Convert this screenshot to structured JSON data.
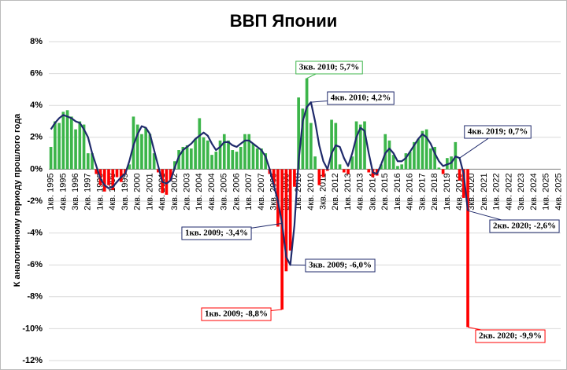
{
  "chart_data": {
    "type": "bar-line",
    "title": "ВВП Японии",
    "y_label": "К аналогичному периоду прошлого года",
    "categories": [
      "1кв. 1995",
      null,
      null,
      "4кв. 1995",
      null,
      null,
      "3кв. 1996",
      null,
      null,
      "2кв. 1997",
      null,
      null,
      "1кв. 1998",
      null,
      null,
      "4кв. 1998",
      null,
      null,
      "3кв. 1999",
      null,
      null,
      "2кв. 2000",
      null,
      null,
      "1кв. 2001",
      null,
      null,
      "4кв. 2001",
      null,
      null,
      "3кв. 2002",
      null,
      null,
      "2кв. 2003",
      null,
      null,
      "1кв. 2004",
      null,
      null,
      "4кв. 2004",
      null,
      null,
      "3кв. 2005",
      null,
      null,
      "2кв. 2006",
      null,
      null,
      "1кв. 2007",
      null,
      null,
      "4кв. 2007",
      null,
      null,
      "3кв. 2008",
      null,
      null,
      "2кв. 2009",
      null,
      null,
      "1кв. 2010",
      null,
      null,
      "4кв. 2010",
      null,
      null,
      "3кв. 2011",
      null,
      null,
      "2кв. 2012",
      null,
      null,
      "1кв. 2013",
      null,
      null,
      "4кв. 2013",
      null,
      null,
      "3кв. 2014",
      null,
      null,
      "2кв. 2015",
      null,
      null,
      "1кв. 2016",
      null,
      null,
      "4кв. 2016",
      null,
      null,
      "3кв. 2017",
      null,
      null,
      "2кв. 2018",
      null,
      null,
      "1кв. 2019",
      null,
      null,
      "4кв. 2019",
      null,
      null,
      "3кв. 2020",
      null,
      null,
      "2кв. 2021",
      null,
      null,
      "1кв. 2022",
      null,
      null,
      "4кв. 2022",
      null,
      null,
      "3кв. 2023",
      null,
      null,
      "2кв. 2024",
      null,
      null,
      "1кв. 2025",
      null,
      null,
      "4кв. 2025"
    ],
    "series": [
      {
        "kind": "bar",
        "color": "#3cb54a",
        "negative_color": "#ff0000",
        "values": [
          1.4,
          3.0,
          2.9,
          3.6,
          3.7,
          3.3,
          2.5,
          3.0,
          2.8,
          1.0,
          1.0,
          -0.3,
          -1.0,
          -1.4,
          -1.0,
          -1.3,
          -0.5,
          -0.8,
          -0.3,
          0.3,
          3.3,
          2.8,
          2.2,
          2.6,
          2.2,
          1.0,
          -0.2,
          -1.5,
          -1.6,
          -0.7,
          0.5,
          1.2,
          1.4,
          1.5,
          1.3,
          1.9,
          3.2,
          2.0,
          1.8,
          0.9,
          1.1,
          1.8,
          2.2,
          1.8,
          1.2,
          1.1,
          1.4,
          2.2,
          2.2,
          1.6,
          1.3,
          1.3,
          1.0,
          -0.3,
          -1.0,
          -3.6,
          -8.8,
          -6.4,
          -5.1,
          -1.1,
          4.5,
          3.8,
          5.7,
          2.9,
          0.8,
          -1.0,
          -0.5,
          -0.1,
          3.1,
          2.9,
          0.3,
          -0.2,
          -0.3,
          0.8,
          3.0,
          2.8,
          3.0,
          -0.2,
          -0.5,
          -0.4,
          0.3,
          2.2,
          1.8,
          0.9,
          0.2,
          0.3,
          1.0,
          1.1,
          1.7,
          1.9,
          2.4,
          2.5,
          1.3,
          1.4,
          0.1,
          -0.3,
          0.7,
          0.8,
          1.7,
          -0.7,
          -1.8,
          -9.9,
          null,
          null,
          null,
          null,
          null,
          null,
          null,
          null,
          null,
          null,
          null,
          null,
          null,
          null,
          null,
          null,
          null,
          null,
          null,
          null,
          null,
          null
        ],
        "value_labels": [
          null,
          null,
          null,
          null,
          null,
          null,
          null,
          null,
          null,
          null,
          null,
          null,
          null,
          null,
          null,
          null,
          null,
          null,
          null,
          null,
          null,
          null,
          null,
          null,
          null,
          null,
          null,
          null,
          null,
          null,
          null,
          null,
          null,
          null,
          null,
          null,
          null,
          null,
          null,
          null,
          null,
          null,
          null,
          null,
          null,
          null,
          null,
          null,
          null,
          null,
          null,
          null,
          null,
          null,
          null,
          null,
          "1кв. 2009; -8,8%",
          null,
          null,
          null,
          null,
          null,
          "3кв. 2010; 5,7%",
          null,
          null,
          null,
          null,
          null,
          null,
          null,
          null,
          null,
          null,
          null,
          null,
          null,
          null,
          null,
          null,
          null,
          null,
          null,
          null,
          null,
          null,
          null,
          null,
          null,
          null,
          null,
          null,
          null,
          null,
          null,
          null,
          null,
          null,
          null,
          null,
          null,
          null,
          "2кв. 2020; -9,9%",
          null,
          null,
          null,
          null,
          null,
          null,
          null,
          null,
          null,
          null,
          null,
          null,
          null,
          null,
          null,
          null,
          null,
          null,
          null,
          null,
          null,
          null
        ]
      },
      {
        "kind": "line",
        "color": "#1f2a6b",
        "values": [
          2.5,
          2.9,
          3.2,
          3.4,
          3.3,
          3.2,
          3.0,
          2.9,
          2.5,
          2.0,
          1.0,
          0.2,
          -0.6,
          -1.0,
          -1.2,
          -1.1,
          -0.8,
          -0.5,
          -0.3,
          0.5,
          1.5,
          2.2,
          2.7,
          2.6,
          2.2,
          1.2,
          0.2,
          -0.8,
          -0.9,
          -0.7,
          0.1,
          0.8,
          1.2,
          1.4,
          1.6,
          1.9,
          2.1,
          2.3,
          2.1,
          1.6,
          1.2,
          1.4,
          1.7,
          1.7,
          1.5,
          1.4,
          1.6,
          1.8,
          1.8,
          1.6,
          1.4,
          1.2,
          0.8,
          0.0,
          -1.0,
          -2.0,
          -3.4,
          -5.5,
          -6.0,
          -3.5,
          0.5,
          3.0,
          3.9,
          4.2,
          3.0,
          1.5,
          0.5,
          0.0,
          1.0,
          1.5,
          1.4,
          0.7,
          0.2,
          1.0,
          2.0,
          2.6,
          2.4,
          1.0,
          -0.2,
          -0.3,
          0.3,
          1.0,
          1.3,
          1.0,
          0.5,
          0.5,
          0.7,
          1.1,
          1.5,
          1.9,
          2.2,
          2.0,
          1.6,
          1.0,
          0.5,
          0.2,
          0.3,
          0.4,
          0.8,
          0.7,
          -0.3,
          -2.6,
          null,
          null,
          null,
          null,
          null,
          null,
          null,
          null,
          null,
          null,
          null,
          null,
          null,
          null,
          null,
          null,
          null,
          null,
          null,
          null,
          null,
          null
        ],
        "value_labels": [
          null,
          null,
          null,
          null,
          null,
          null,
          null,
          null,
          null,
          null,
          null,
          null,
          null,
          null,
          null,
          null,
          null,
          null,
          null,
          null,
          null,
          null,
          null,
          null,
          null,
          null,
          null,
          null,
          null,
          null,
          null,
          null,
          null,
          null,
          null,
          null,
          null,
          null,
          null,
          null,
          null,
          null,
          null,
          null,
          null,
          null,
          null,
          null,
          null,
          null,
          null,
          null,
          null,
          null,
          null,
          null,
          "1кв. 2009; -3,4%",
          null,
          "3кв. 2009; -6,0%",
          null,
          null,
          null,
          null,
          "4кв. 2010; 4,2%",
          null,
          null,
          null,
          null,
          null,
          null,
          null,
          null,
          null,
          null,
          null,
          null,
          null,
          null,
          null,
          null,
          null,
          null,
          null,
          null,
          null,
          null,
          null,
          null,
          null,
          null,
          null,
          null,
          null,
          null,
          null,
          null,
          null,
          null,
          null,
          "4кв. 2019; 0,7%",
          null,
          "2кв. 2020; -2,6%",
          null,
          null,
          null,
          null,
          null,
          null,
          null,
          null,
          null,
          null,
          null,
          null,
          null,
          null,
          null,
          null,
          null,
          null,
          null,
          null,
          null,
          null
        ]
      }
    ],
    "ylim": [
      -12,
      8
    ],
    "yticks": [
      {
        "value": -12,
        "label": "-12%"
      },
      {
        "value": -10,
        "label": "-10%"
      },
      {
        "value": -8,
        "label": "-8%"
      },
      {
        "value": -6,
        "label": "-6%"
      },
      {
        "value": -4,
        "label": "-4%"
      },
      {
        "value": -2,
        "label": "-2%"
      },
      {
        "value": 0,
        "label": "0%"
      },
      {
        "value": 2,
        "label": "2%"
      },
      {
        "value": 4,
        "label": "4%"
      },
      {
        "value": 6,
        "label": "6%"
      },
      {
        "value": 8,
        "label": "8%"
      }
    ],
    "grid": true
  }
}
